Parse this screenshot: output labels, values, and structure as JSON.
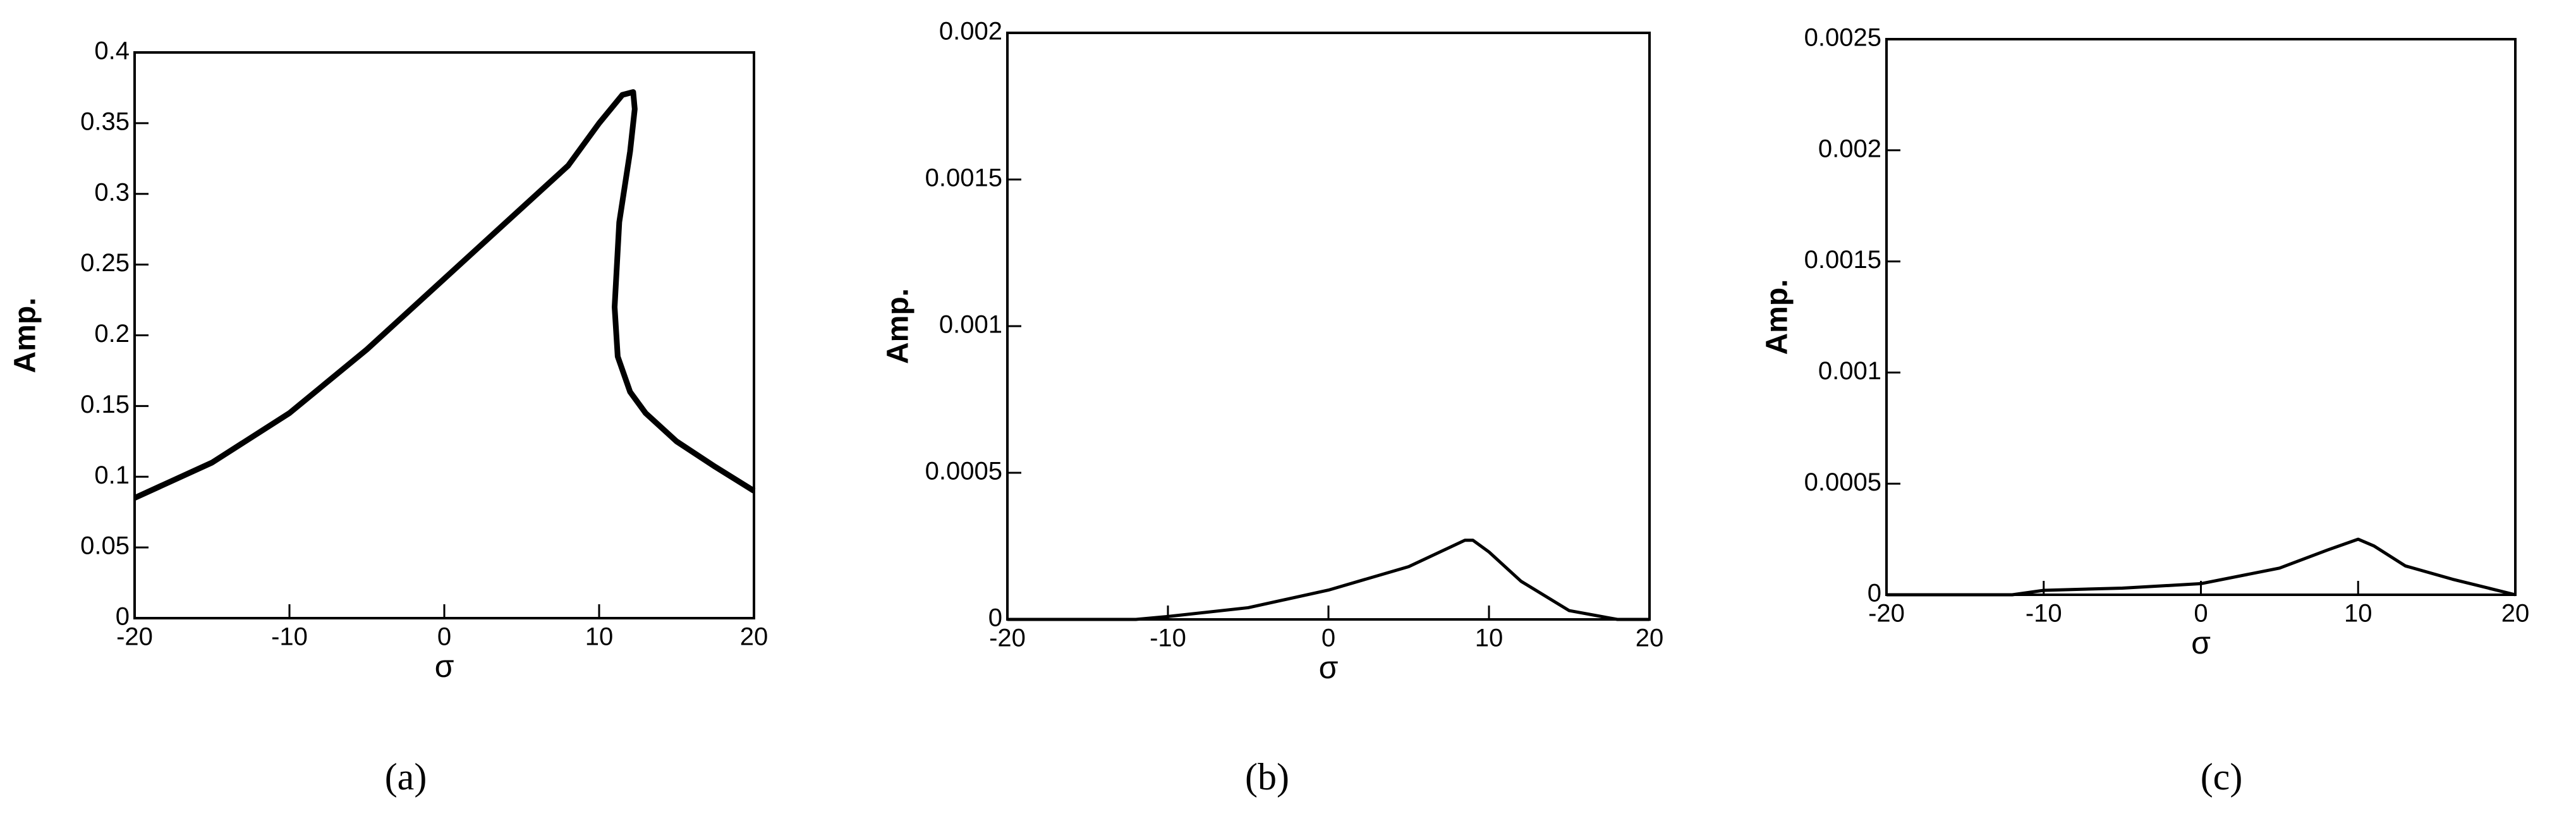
{
  "chart_data": [
    {
      "type": "line",
      "panel_label": "(a)",
      "xlabel": "σ",
      "ylabel": "Amp.",
      "xlim": [
        -20,
        20
      ],
      "xticks": [
        -20,
        -10,
        0,
        10,
        20
      ],
      "ylim": [
        0,
        0.4
      ],
      "yticks": [
        0,
        0.05,
        0.1,
        0.15,
        0.2,
        0.25,
        0.3,
        0.35,
        0.4
      ],
      "series": [
        {
          "color": "#000000",
          "x": [
            -20,
            -15,
            -10,
            -5,
            0,
            5,
            8,
            10,
            11.5,
            12.2,
            12.3,
            12,
            11.3,
            11,
            11.2,
            12,
            13,
            15,
            17.5,
            20
          ],
          "values": [
            0.085,
            0.11,
            0.145,
            0.19,
            0.24,
            0.29,
            0.32,
            0.35,
            0.37,
            0.372,
            0.36,
            0.33,
            0.28,
            0.22,
            0.185,
            0.16,
            0.145,
            0.125,
            0.107,
            0.09
          ]
        }
      ]
    },
    {
      "type": "line",
      "panel_label": "(b)",
      "xlabel": "σ",
      "ylabel": "Amp.",
      "xlim": [
        -20,
        20
      ],
      "xticks": [
        -20,
        -10,
        0,
        10,
        20
      ],
      "ylim": [
        0,
        0.002
      ],
      "yticks": [
        0,
        0.0005,
        0.001,
        0.0015,
        0.002
      ],
      "series": [
        {
          "color": "#000000",
          "x": [
            -20,
            -12,
            -10,
            -5,
            0,
            5,
            8.5,
            9,
            10,
            12,
            15,
            18,
            20
          ],
          "values": [
            0,
            0,
            1e-05,
            4e-05,
            0.0001,
            0.00018,
            0.00027,
            0.00027,
            0.00023,
            0.00013,
            3e-05,
            0,
            0
          ]
        }
      ]
    },
    {
      "type": "line",
      "panel_label": "(c)",
      "xlabel": "σ",
      "ylabel": "Amp.",
      "xlim": [
        -20,
        20
      ],
      "xticks": [
        -20,
        -10,
        0,
        10,
        20
      ],
      "ylim": [
        0,
        0.0025
      ],
      "yticks": [
        0,
        0.0005,
        0.001,
        0.0015,
        0.002,
        0.0025
      ],
      "series": [
        {
          "color": "#000000",
          "x": [
            -20,
            -12,
            -10,
            -5,
            0,
            5,
            8,
            10,
            11,
            13,
            16,
            20
          ],
          "values": [
            0,
            0,
            2e-05,
            3e-05,
            5e-05,
            0.00012,
            0.0002,
            0.00025,
            0.00022,
            0.00013,
            7e-05,
            0
          ]
        }
      ]
    }
  ]
}
